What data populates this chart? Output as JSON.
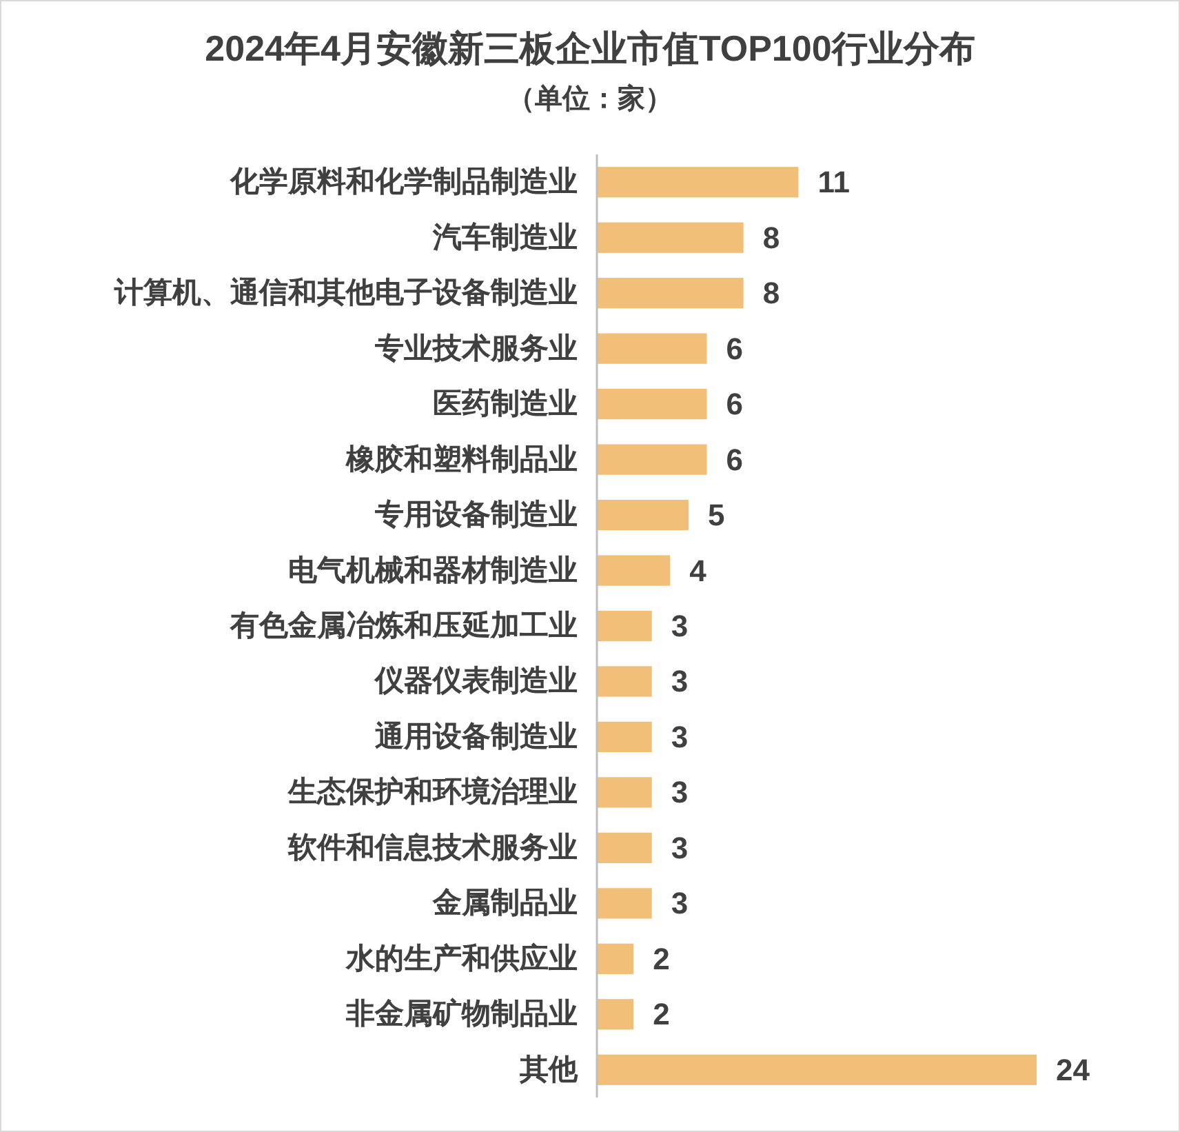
{
  "chart_data": {
    "type": "bar",
    "orientation": "horizontal",
    "title": "2024年4月安徽新三板企业市值TOP100行业分布",
    "subtitle": "（单位：家）",
    "categories": [
      "化学原料和化学制品制造业",
      "汽车制造业",
      "计算机、通信和其他电子设备制造业",
      "专业技术服务业",
      "医药制造业",
      "橡胶和塑料制品业",
      "专用设备制造业",
      "电气机械和器材制造业",
      "有色金属冶炼和压延加工业",
      "仪器仪表制造业",
      "通用设备制造业",
      "生态保护和环境治理业",
      "软件和信息技术服务业",
      "金属制品业",
      "水的生产和供应业",
      "非金属矿物制品业",
      "其他"
    ],
    "values": [
      11,
      8,
      8,
      6,
      6,
      6,
      5,
      4,
      3,
      3,
      3,
      3,
      3,
      3,
      2,
      2,
      24
    ],
    "color": "#f2bf78",
    "data_labels": true
  }
}
